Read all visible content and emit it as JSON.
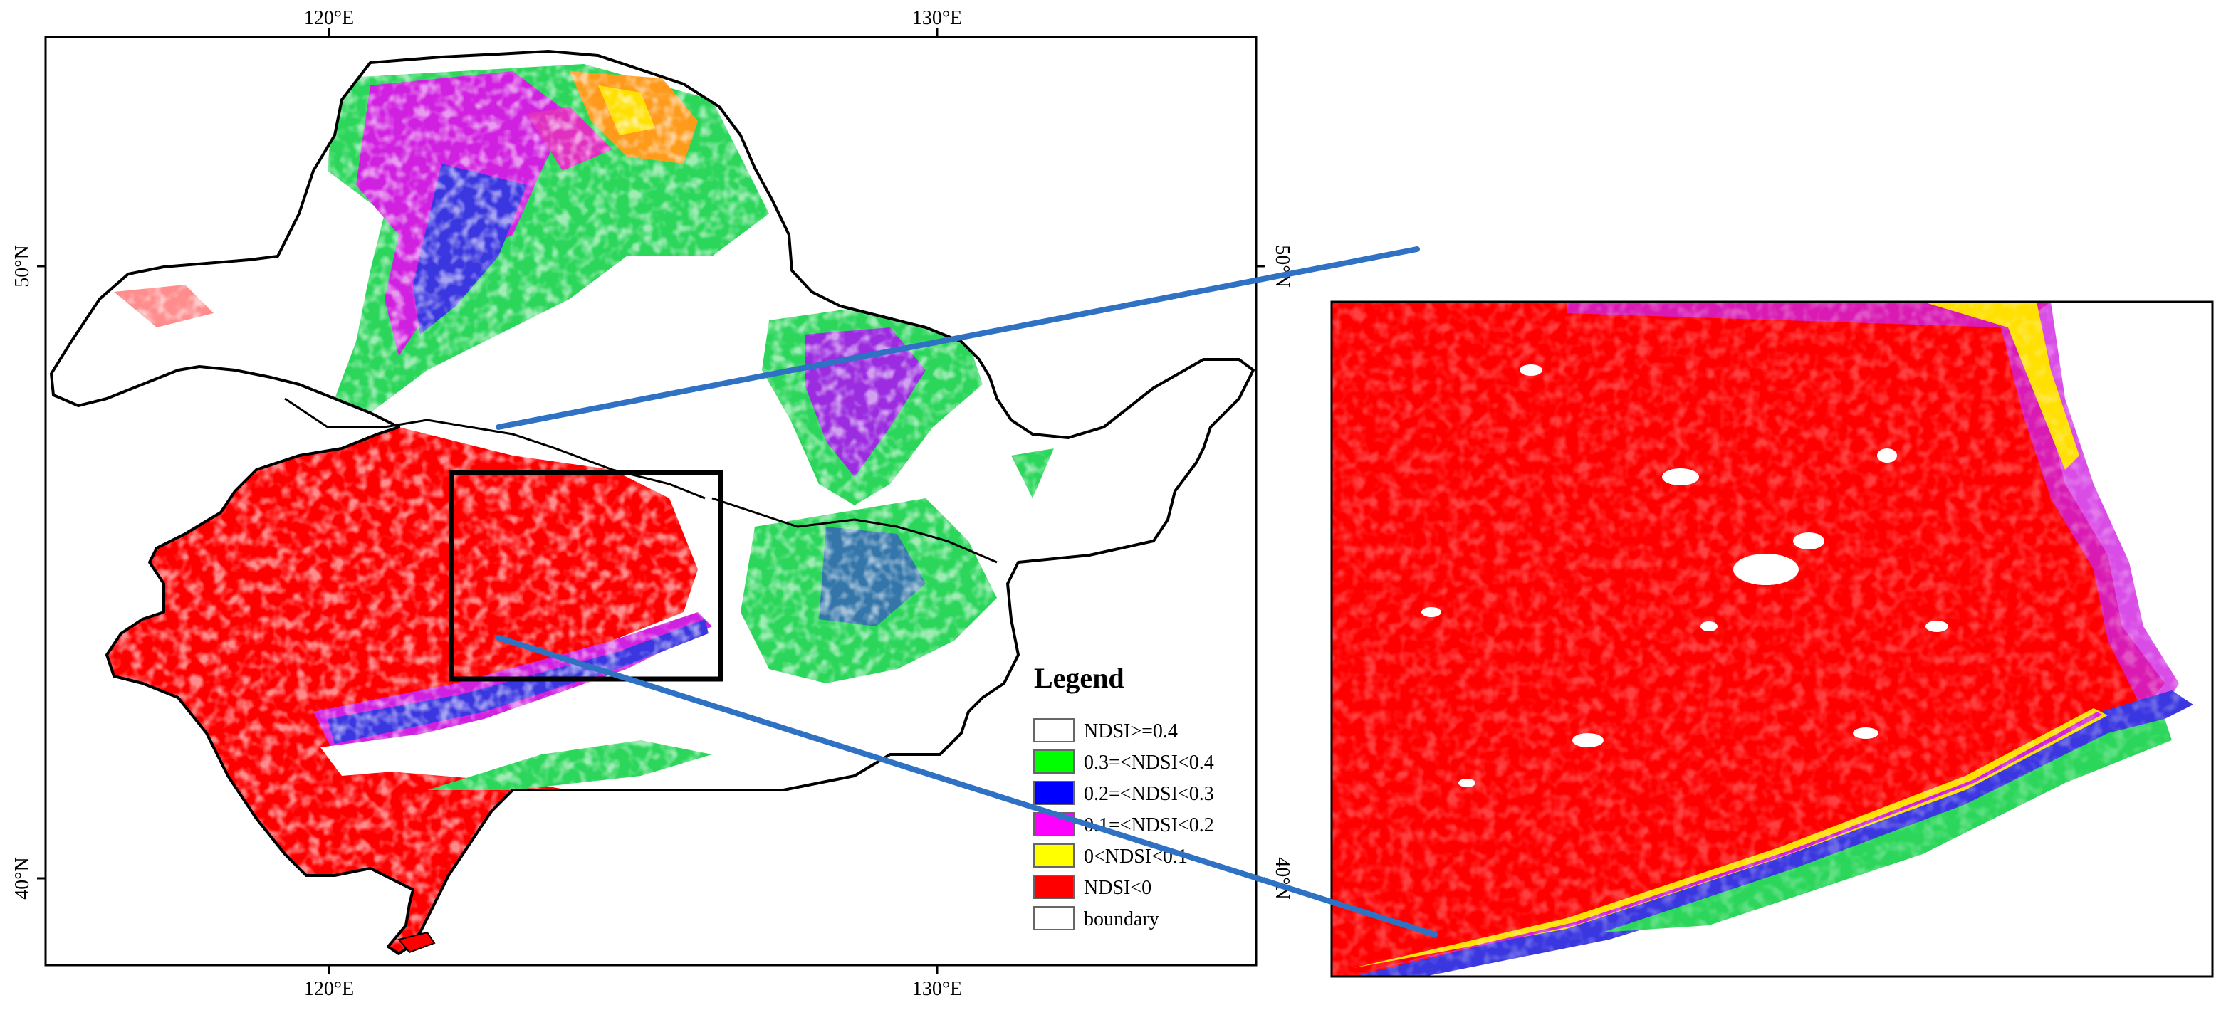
{
  "map": {
    "grid_labels": {
      "top": [
        "120°E",
        "130°E"
      ],
      "bottom": [
        "120°E",
        "130°E"
      ],
      "left": [
        "50°N",
        "40°N"
      ],
      "right": [
        "50°N",
        "40°N"
      ]
    }
  },
  "legend": {
    "title": "Legend",
    "items": [
      {
        "label": "NDSI>=0.4",
        "color": "#ffffff"
      },
      {
        "label": "0.3=<NDSI<0.4",
        "color": "#00ff00"
      },
      {
        "label": "0.2=<NDSI<0.3",
        "color": "#0000ff"
      },
      {
        "label": "0.1=<NDSI<0.2",
        "color": "#ff00ff"
      },
      {
        "label": "0<NDSI<0.1",
        "color": "#ffff00"
      },
      {
        "label": "NDSI<0",
        "color": "#ff0000"
      },
      {
        "label": "boundary",
        "color": "#ffffff"
      }
    ]
  },
  "colors": {
    "callout_line": "#2f72c4",
    "zoom_box": "#000000",
    "boundary": "#000000"
  }
}
